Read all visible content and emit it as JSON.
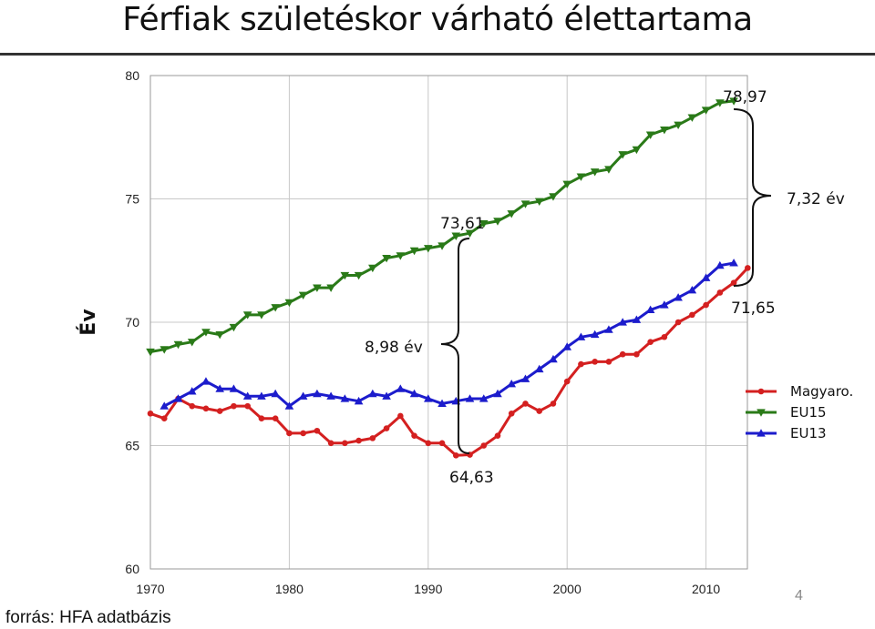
{
  "title": "Férfiak születéskor várható élettartama",
  "source": "forrás: HFA adatbázis",
  "slide_number": "4",
  "chart_data": {
    "type": "line",
    "title": "Férfiak születéskor várható élettartama",
    "xlabel": "",
    "ylabel": "Év",
    "xlim": [
      1970,
      2014
    ],
    "ylim": [
      60,
      80
    ],
    "x_ticks": [
      "1970",
      "1980",
      "1990",
      "2000",
      "2010"
    ],
    "y_ticks": [
      "60",
      "65",
      "70",
      "75",
      "80"
    ],
    "grid": true,
    "legend_position": "right",
    "series": [
      {
        "name": "Magyaro.",
        "color": "#d42020",
        "marker": "circle",
        "x": [
          1970,
          1971,
          1972,
          1973,
          1974,
          1975,
          1976,
          1977,
          1978,
          1979,
          1980,
          1981,
          1982,
          1983,
          1984,
          1985,
          1986,
          1987,
          1988,
          1989,
          1990,
          1991,
          1992,
          1993,
          1994,
          1995,
          1996,
          1997,
          1998,
          1999,
          2000,
          2001,
          2002,
          2003,
          2004,
          2005,
          2006,
          2007,
          2008,
          2009,
          2010,
          2011,
          2012,
          2013
        ],
        "y": [
          66.3,
          66.1,
          66.9,
          66.6,
          66.5,
          66.4,
          66.6,
          66.6,
          66.1,
          66.1,
          65.5,
          65.5,
          65.6,
          65.1,
          65.1,
          65.2,
          65.3,
          65.7,
          66.2,
          65.4,
          65.1,
          65.1,
          64.6,
          64.63,
          65.0,
          65.4,
          66.3,
          66.7,
          66.4,
          66.7,
          67.6,
          68.3,
          68.4,
          68.4,
          68.7,
          68.7,
          69.2,
          69.4,
          70.0,
          70.3,
          70.7,
          71.2,
          71.6,
          72.2
        ]
      },
      {
        "name": "EU15",
        "color": "#2a7a18",
        "marker": "triangle-down",
        "x": [
          1970,
          1971,
          1972,
          1973,
          1974,
          1975,
          1976,
          1977,
          1978,
          1979,
          1980,
          1981,
          1982,
          1983,
          1984,
          1985,
          1986,
          1987,
          1988,
          1989,
          1990,
          1991,
          1992,
          1993,
          1994,
          1995,
          1996,
          1997,
          1998,
          1999,
          2000,
          2001,
          2002,
          2003,
          2004,
          2005,
          2006,
          2007,
          2008,
          2009,
          2010,
          2011,
          2012
        ],
        "y": [
          68.8,
          68.9,
          69.1,
          69.2,
          69.6,
          69.5,
          69.8,
          70.3,
          70.3,
          70.6,
          70.8,
          71.1,
          71.4,
          71.4,
          71.9,
          71.9,
          72.2,
          72.6,
          72.7,
          72.9,
          73.0,
          73.1,
          73.5,
          73.61,
          74.0,
          74.1,
          74.4,
          74.8,
          74.9,
          75.1,
          75.6,
          75.9,
          76.1,
          76.2,
          76.8,
          77.0,
          77.6,
          77.8,
          78.0,
          78.3,
          78.6,
          78.9,
          78.97
        ]
      },
      {
        "name": "EU13",
        "color": "#1c1ccc",
        "marker": "triangle-up",
        "x": [
          1971,
          1972,
          1973,
          1974,
          1975,
          1976,
          1977,
          1978,
          1979,
          1980,
          1981,
          1982,
          1983,
          1984,
          1985,
          1986,
          1987,
          1988,
          1989,
          1990,
          1991,
          1992,
          1993,
          1994,
          1995,
          1996,
          1997,
          1998,
          1999,
          2000,
          2001,
          2002,
          2003,
          2004,
          2005,
          2006,
          2007,
          2008,
          2009,
          2010,
          2011,
          2012
        ],
        "y": [
          66.6,
          66.9,
          67.2,
          67.6,
          67.3,
          67.3,
          67.0,
          67.0,
          67.1,
          66.6,
          67.0,
          67.1,
          67.0,
          66.9,
          66.8,
          67.1,
          67.0,
          67.3,
          67.1,
          66.9,
          66.7,
          66.8,
          66.9,
          66.9,
          67.1,
          67.5,
          67.7,
          68.1,
          68.5,
          69.0,
          69.4,
          69.5,
          69.7,
          70.0,
          70.1,
          70.5,
          70.7,
          71.0,
          71.3,
          71.8,
          72.3,
          72.4
        ]
      }
    ],
    "annotations": [
      {
        "text": "78,97",
        "x": 2012,
        "y": 78.97
      },
      {
        "text": "73,61",
        "x": 1993,
        "y": 73.61
      },
      {
        "text": "64,63",
        "x": 1993,
        "y": 64.63
      },
      {
        "text": "71,65",
        "x": 2012,
        "y": 71.65
      },
      {
        "text": "8,98 év"
      },
      {
        "text": "7,32 év"
      }
    ]
  }
}
